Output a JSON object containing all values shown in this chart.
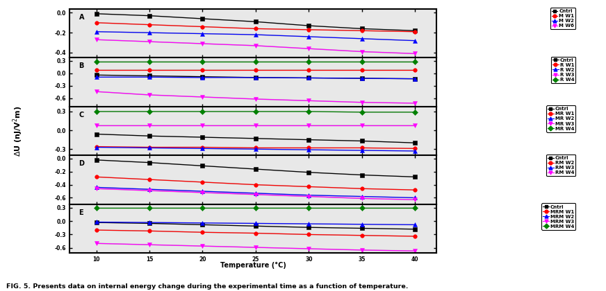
{
  "x": [
    10,
    15,
    20,
    25,
    30,
    35,
    40
  ],
  "panels": [
    {
      "label": "A",
      "series": [
        {
          "name": "Cntrl",
          "color": "black",
          "marker": "s",
          "markersize": 4,
          "values": [
            -0.01,
            -0.03,
            -0.06,
            -0.09,
            -0.13,
            -0.16,
            -0.18
          ]
        },
        {
          "name": "M W1",
          "color": "red",
          "marker": "o",
          "markersize": 4,
          "values": [
            -0.1,
            -0.12,
            -0.14,
            -0.16,
            -0.17,
            -0.18,
            -0.19
          ]
        },
        {
          "name": "M W2",
          "color": "blue",
          "marker": "^",
          "markersize": 4,
          "values": [
            -0.19,
            -0.2,
            -0.21,
            -0.22,
            -0.24,
            -0.26,
            -0.28
          ]
        },
        {
          "name": "M W6",
          "color": "magenta",
          "marker": "v",
          "markersize": 4,
          "values": [
            -0.27,
            -0.29,
            -0.31,
            -0.33,
            -0.36,
            -0.39,
            -0.41
          ]
        }
      ],
      "ylim": [
        -0.45,
        0.04
      ],
      "yticks": [
        0.0,
        -0.2,
        -0.4
      ],
      "yticklabels": [
        "0.0",
        "-0.2",
        "-0.4"
      ]
    },
    {
      "label": "B",
      "series": [
        {
          "name": "Cntrl",
          "color": "black",
          "marker": "s",
          "markersize": 4,
          "values": [
            -0.04,
            -0.06,
            -0.08,
            -0.1,
            -0.11,
            -0.12,
            -0.13
          ]
        },
        {
          "name": "R W1",
          "color": "red",
          "marker": "o",
          "markersize": 4,
          "values": [
            0.09,
            0.09,
            0.09,
            0.09,
            0.09,
            0.09,
            0.09
          ]
        },
        {
          "name": "R W2",
          "color": "blue",
          "marker": "^",
          "markersize": 4,
          "values": [
            -0.09,
            -0.09,
            -0.1,
            -0.1,
            -0.11,
            -0.12,
            -0.13
          ]
        },
        {
          "name": "R W3",
          "color": "magenta",
          "marker": "v",
          "markersize": 4,
          "values": [
            -0.44,
            -0.52,
            -0.57,
            -0.62,
            -0.66,
            -0.7,
            -0.72
          ]
        },
        {
          "name": "R W4",
          "color": "green",
          "marker": "D",
          "markersize": 4,
          "values": [
            0.28,
            0.28,
            0.28,
            0.28,
            0.28,
            0.28,
            0.28
          ]
        }
      ],
      "ylim": [
        -0.8,
        0.38
      ],
      "yticks": [
        0.3,
        0.0,
        -0.3,
        -0.6
      ],
      "yticklabels": [
        "0.3",
        "0.0",
        "-0.3",
        "-0.6"
      ]
    },
    {
      "label": "C",
      "series": [
        {
          "name": "Cntrl",
          "color": "black",
          "marker": "s",
          "markersize": 4,
          "values": [
            -0.06,
            -0.09,
            -0.11,
            -0.13,
            -0.15,
            -0.17,
            -0.2
          ]
        },
        {
          "name": "MR W1",
          "color": "red",
          "marker": "o",
          "markersize": 4,
          "values": [
            -0.26,
            -0.27,
            -0.27,
            -0.28,
            -0.28,
            -0.28,
            -0.29
          ]
        },
        {
          "name": "MR W2",
          "color": "blue",
          "marker": "^",
          "markersize": 4,
          "values": [
            -0.27,
            -0.28,
            -0.29,
            -0.3,
            -0.31,
            -0.32,
            -0.33
          ]
        },
        {
          "name": "MR W3",
          "color": "magenta",
          "marker": "v",
          "markersize": 4,
          "values": [
            0.08,
            0.08,
            0.08,
            0.08,
            0.08,
            0.08,
            0.08
          ]
        },
        {
          "name": "MR W4",
          "color": "green",
          "marker": "D",
          "markersize": 4,
          "values": [
            0.3,
            0.3,
            0.3,
            0.3,
            0.3,
            0.29,
            0.29
          ]
        }
      ],
      "ylim": [
        -0.4,
        0.38
      ],
      "yticks": [
        0.3,
        0.0,
        -0.3
      ],
      "yticklabels": [
        "0.3",
        "0.0",
        "-0.3"
      ]
    },
    {
      "label": "D",
      "series": [
        {
          "name": "Cntrl",
          "color": "black",
          "marker": "s",
          "markersize": 4,
          "values": [
            -0.02,
            -0.06,
            -0.11,
            -0.16,
            -0.21,
            -0.25,
            -0.28
          ]
        },
        {
          "name": "RM W2",
          "color": "red",
          "marker": "o",
          "markersize": 4,
          "values": [
            -0.28,
            -0.32,
            -0.36,
            -0.4,
            -0.43,
            -0.46,
            -0.48
          ]
        },
        {
          "name": "RM W3",
          "color": "blue",
          "marker": "^",
          "markersize": 4,
          "values": [
            -0.44,
            -0.47,
            -0.5,
            -0.53,
            -0.56,
            -0.58,
            -0.6
          ]
        },
        {
          "name": "RM W4",
          "color": "magenta",
          "marker": "v",
          "markersize": 4,
          "values": [
            -0.46,
            -0.49,
            -0.52,
            -0.55,
            -0.58,
            -0.61,
            -0.63
          ]
        }
      ],
      "ylim": [
        -0.7,
        0.05
      ],
      "yticks": [
        0.0,
        -0.2,
        -0.4,
        -0.6
      ],
      "yticklabels": [
        "0.0",
        "-0.2",
        "-0.4",
        "-0.6"
      ]
    },
    {
      "label": "E",
      "series": [
        {
          "name": "Cntrl",
          "color": "black",
          "marker": "s",
          "markersize": 4,
          "values": [
            -0.03,
            -0.05,
            -0.08,
            -0.11,
            -0.14,
            -0.16,
            -0.18
          ]
        },
        {
          "name": "MRM W1",
          "color": "red",
          "marker": "o",
          "markersize": 4,
          "values": [
            -0.2,
            -0.22,
            -0.25,
            -0.27,
            -0.3,
            -0.32,
            -0.34
          ]
        },
        {
          "name": "MRM W2",
          "color": "blue",
          "marker": "^",
          "markersize": 4,
          "values": [
            -0.02,
            -0.03,
            -0.04,
            -0.05,
            -0.06,
            -0.07,
            -0.08
          ]
        },
        {
          "name": "MRM W3",
          "color": "magenta",
          "marker": "v",
          "markersize": 4,
          "values": [
            -0.5,
            -0.53,
            -0.56,
            -0.59,
            -0.62,
            -0.65,
            -0.67
          ]
        },
        {
          "name": "MRM W4",
          "color": "green",
          "marker": "D",
          "markersize": 4,
          "values": [
            0.3,
            0.3,
            0.3,
            0.3,
            0.3,
            0.3,
            0.3
          ]
        }
      ],
      "ylim": [
        -0.72,
        0.38
      ],
      "yticks": [
        0.3,
        0.0,
        -0.3,
        -0.6
      ],
      "yticklabels": [
        "0.3",
        "0.0",
        "-0.3",
        "-0.6"
      ]
    }
  ],
  "xlabel": "Temperature (°C)",
  "ylabel": "ΔU (nJ/V²m)",
  "caption": "FIG. 5. Presents data on internal energy change during the experimental time as a function of temperature.",
  "bg_color": "#e8e8e8",
  "line_color_behind": "#bbbbbb",
  "fig_width": 8.72,
  "fig_height": 4.2
}
